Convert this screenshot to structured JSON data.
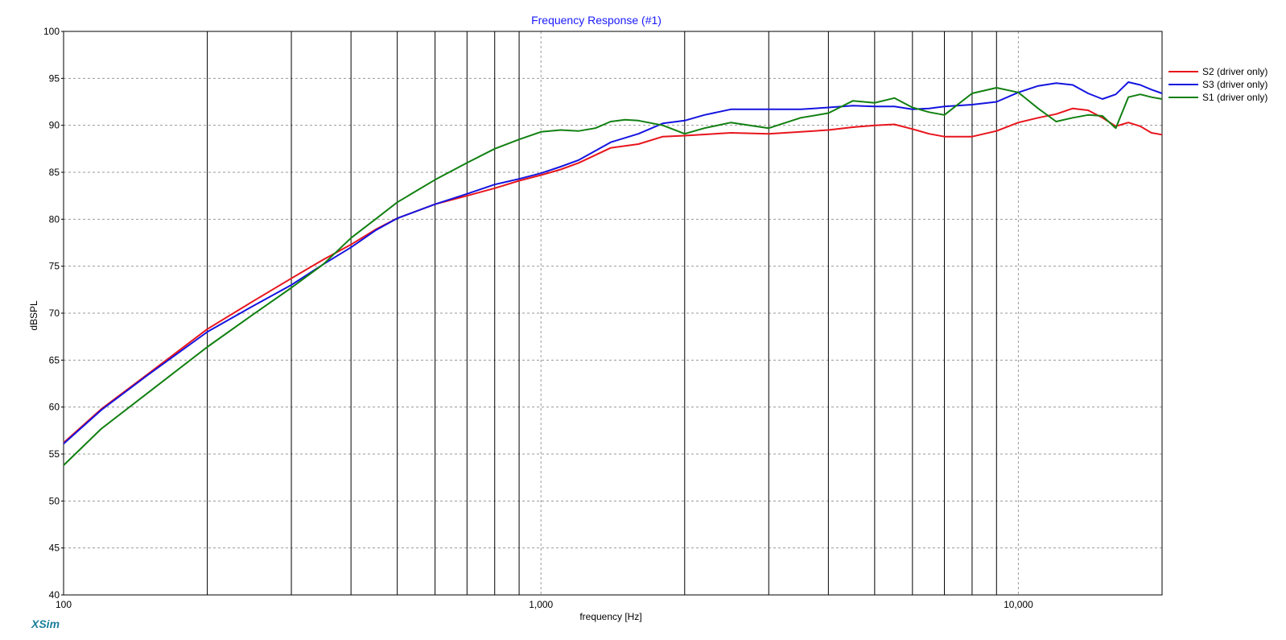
{
  "brand": "XSim",
  "colors": {
    "red": "#e8141c",
    "blue": "#1414e0",
    "green": "#118011",
    "title": "#1a1aff",
    "grid": "#9a9a9a",
    "brand": "#1a7f99"
  },
  "chart_data": {
    "type": "line",
    "title": "Frequency Response (#1)",
    "xlabel": "frequency [Hz]",
    "ylabel": "dBSPL",
    "xscale": "log",
    "xlim": [
      100,
      20000
    ],
    "ylim": [
      40,
      100
    ],
    "grid": true,
    "legend": "right",
    "x_tick_labels": [
      {
        "value": 100,
        "label": "100"
      },
      {
        "value": 1000,
        "label": "1,000"
      },
      {
        "value": 10000,
        "label": "10,000"
      }
    ],
    "y_ticks": [
      40,
      45,
      50,
      55,
      60,
      65,
      70,
      75,
      80,
      85,
      90,
      95,
      100
    ],
    "series": [
      {
        "name": "S2 (driver only)",
        "color": "#e8141c",
        "x": [
          100,
          120,
          150,
          200,
          250,
          300,
          350,
          400,
          450,
          500,
          600,
          700,
          800,
          900,
          1000,
          1100,
          1200,
          1400,
          1600,
          1800,
          2000,
          2500,
          3000,
          3500,
          4000,
          4500,
          5000,
          5500,
          6000,
          6500,
          7000,
          8000,
          9000,
          10000,
          11000,
          12000,
          13000,
          14000,
          15000,
          16000,
          17000,
          18000,
          19000,
          20000
        ],
        "y": [
          56.2,
          59.8,
          63.5,
          68.3,
          71.3,
          73.7,
          75.7,
          77.3,
          78.9,
          80.1,
          81.6,
          82.5,
          83.3,
          84.1,
          84.7,
          85.3,
          86.0,
          87.6,
          88.0,
          88.8,
          88.9,
          89.2,
          89.1,
          89.3,
          89.5,
          89.8,
          90.0,
          90.1,
          89.6,
          89.1,
          88.8,
          88.8,
          89.4,
          90.3,
          90.8,
          91.2,
          91.8,
          91.6,
          90.8,
          89.9,
          90.3,
          89.9,
          89.2,
          89.0
        ]
      },
      {
        "name": "S3 (driver only)",
        "color": "#1414e0",
        "x": [
          100,
          120,
          150,
          200,
          250,
          300,
          350,
          400,
          450,
          500,
          600,
          700,
          800,
          900,
          1000,
          1100,
          1200,
          1400,
          1600,
          1800,
          2000,
          2200,
          2500,
          3000,
          3500,
          4000,
          4500,
          5000,
          5500,
          6000,
          6500,
          7000,
          8000,
          9000,
          10000,
          11000,
          12000,
          13000,
          14000,
          15000,
          16000,
          17000,
          18000,
          19000,
          20000
        ],
        "y": [
          56.1,
          59.7,
          63.4,
          68.0,
          70.8,
          73.0,
          75.2,
          77.0,
          78.8,
          80.1,
          81.6,
          82.7,
          83.7,
          84.3,
          84.9,
          85.6,
          86.3,
          88.2,
          89.1,
          90.2,
          90.5,
          91.1,
          91.7,
          91.7,
          91.7,
          91.9,
          92.1,
          92.0,
          92.0,
          91.7,
          91.8,
          92.0,
          92.2,
          92.5,
          93.5,
          94.2,
          94.5,
          94.3,
          93.4,
          92.8,
          93.3,
          94.6,
          94.3,
          93.8,
          93.4
        ]
      },
      {
        "name": "S1 (driver only)",
        "color": "#118011",
        "x": [
          100,
          120,
          150,
          200,
          250,
          300,
          350,
          400,
          450,
          500,
          600,
          700,
          800,
          900,
          1000,
          1100,
          1200,
          1300,
          1400,
          1500,
          1600,
          1800,
          2000,
          2200,
          2500,
          3000,
          3500,
          4000,
          4500,
          5000,
          5500,
          6000,
          6500,
          7000,
          8000,
          9000,
          10000,
          11000,
          12000,
          13000,
          14000,
          15000,
          16000,
          17000,
          18000,
          19000,
          20000
        ],
        "y": [
          53.8,
          57.7,
          61.5,
          66.4,
          69.9,
          72.7,
          75.2,
          78.0,
          80.0,
          81.8,
          84.2,
          86.0,
          87.5,
          88.5,
          89.3,
          89.5,
          89.4,
          89.7,
          90.4,
          90.6,
          90.5,
          90.0,
          89.1,
          89.7,
          90.3,
          89.7,
          90.8,
          91.3,
          92.6,
          92.4,
          92.9,
          91.9,
          91.4,
          91.1,
          93.4,
          94.0,
          93.5,
          91.8,
          90.4,
          90.8,
          91.1,
          91.0,
          89.7,
          93.0,
          93.3,
          93.0,
          92.8
        ]
      }
    ]
  }
}
